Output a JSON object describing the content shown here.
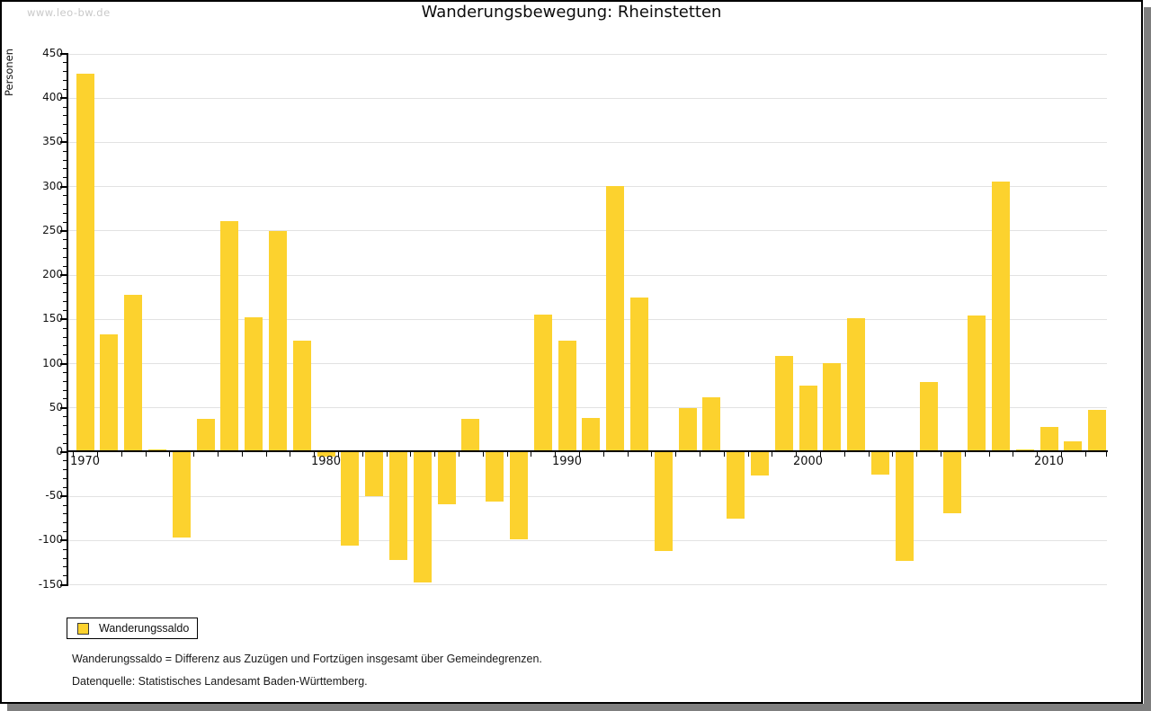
{
  "page": {
    "watermark": "www.leo-bw.de",
    "footnotes": [
      "Wanderungssaldo = Differenz aus Zuzügen und Fortzügen insgesamt über Gemeindegrenzen.",
      "Datenquelle: Statistisches Landesamt Baden-Württemberg."
    ]
  },
  "chart_data": {
    "type": "bar",
    "title": "Wanderungsbewegung: Rheinstetten",
    "xlabel": "",
    "ylabel": "Personen",
    "legend": [
      "Wanderungssaldo"
    ],
    "legend_position": "bottom-left",
    "grid": true,
    "ylim": [
      -150,
      450
    ],
    "yticks": [
      -150,
      -100,
      -50,
      0,
      50,
      100,
      150,
      200,
      250,
      300,
      350,
      400,
      450
    ],
    "ytick_minor_step": 10,
    "xticks_labeled": [
      1970,
      1980,
      1990,
      2000,
      2010
    ],
    "categories": [
      1970,
      1971,
      1972,
      1973,
      1974,
      1975,
      1976,
      1977,
      1978,
      1979,
      1980,
      1981,
      1982,
      1983,
      1984,
      1985,
      1986,
      1987,
      1988,
      1989,
      1990,
      1991,
      1992,
      1993,
      1994,
      1995,
      1996,
      1997,
      1998,
      1999,
      2000,
      2001,
      2002,
      2003,
      2004,
      2005,
      2006,
      2007,
      2008,
      2009,
      2010,
      2011,
      2012
    ],
    "series": [
      {
        "name": "Wanderungssaldo",
        "values": [
          428,
          133,
          178,
          3,
          -97,
          38,
          261,
          152,
          250,
          126,
          -5,
          -106,
          -50,
          -122,
          -147,
          -59,
          38,
          -56,
          -99,
          155,
          126,
          39,
          301,
          175,
          -112,
          50,
          62,
          -75,
          -26,
          109,
          75,
          101,
          151,
          -25,
          -123,
          79,
          -69,
          154,
          306,
          3,
          28,
          12,
          48
        ]
      }
    ],
    "colors": {
      "bar": "#fcd22e",
      "gridline": "#e2e2e2",
      "axis": "#000000",
      "watermark": "#c9c9c9",
      "shadow": "#7f7f7f"
    }
  }
}
